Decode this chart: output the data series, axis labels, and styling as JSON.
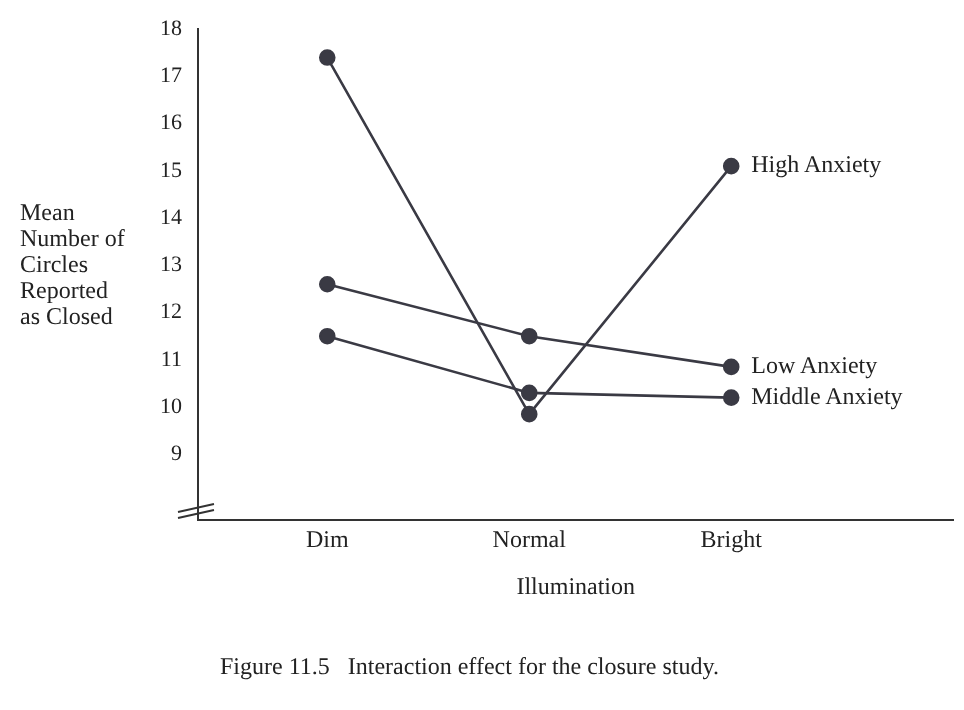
{
  "chart_data": {
    "type": "line",
    "xlabel": "Illumination",
    "ylabel": "Mean Number of Circles Reported as Closed",
    "categories": [
      "Dim",
      "Normal",
      "Bright"
    ],
    "series": [
      {
        "name": "High Anxiety",
        "color": "#3a3a44",
        "values": [
          17.4,
          9.85,
          15.1
        ]
      },
      {
        "name": "Low Anxiety",
        "color": "#3a3a44",
        "values": [
          12.6,
          11.5,
          10.85
        ]
      },
      {
        "name": "Middle Anxiety",
        "color": "#3a3a44",
        "values": [
          11.5,
          10.3,
          10.2
        ]
      }
    ],
    "ylim": [
      7.6,
      18
    ],
    "yticks": [
      9,
      10,
      11,
      12,
      13,
      14,
      15,
      16,
      17,
      18
    ],
    "grid": false,
    "legend": false,
    "marker": "circle",
    "line_style": "solid",
    "annotations": [
      "Figure 11.5   Interaction effect for the closure study."
    ]
  }
}
